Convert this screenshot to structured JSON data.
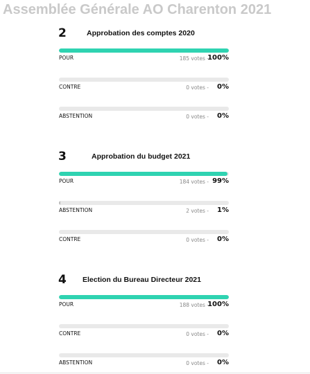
{
  "header": {
    "title": "Assemblée Générale AO Charenton 2021"
  },
  "resolutions": [
    {
      "number": "2",
      "title": "Approbation des comptes 2020",
      "options": [
        {
          "label": "POUR",
          "votes": 185,
          "votes_label": "185 votes -",
          "percent": 100,
          "percent_label": "100%"
        },
        {
          "label": "CONTRE",
          "votes": 0,
          "votes_label": "0 votes -",
          "percent": 0,
          "percent_label": "0%"
        },
        {
          "label": "ABSTENTION",
          "votes": 0,
          "votes_label": "0 votes -",
          "percent": 0,
          "percent_label": "0%"
        }
      ]
    },
    {
      "number": "3",
      "title": "Approbation du budget 2021",
      "options": [
        {
          "label": "POUR",
          "votes": 184,
          "votes_label": "184 votes -",
          "percent": 99,
          "percent_label": "99%"
        },
        {
          "label": "ABSTENTION",
          "votes": 2,
          "votes_label": "2 votes -",
          "percent": 1,
          "percent_label": "1%"
        },
        {
          "label": "CONTRE",
          "votes": 0,
          "votes_label": "0 votes -",
          "percent": 0,
          "percent_label": "0%"
        }
      ]
    },
    {
      "number": "4",
      "title": "Election du Bureau Directeur 2021",
      "options": [
        {
          "label": "POUR",
          "votes": 188,
          "votes_label": "188 votes -",
          "percent": 100,
          "percent_label": "100%"
        },
        {
          "label": "CONTRE",
          "votes": 0,
          "votes_label": "0 votes -",
          "percent": 0,
          "percent_label": "0%"
        },
        {
          "label": "ABSTENTION",
          "votes": 0,
          "votes_label": "0 votes -",
          "percent": 0,
          "percent_label": "0%"
        }
      ]
    }
  ]
}
